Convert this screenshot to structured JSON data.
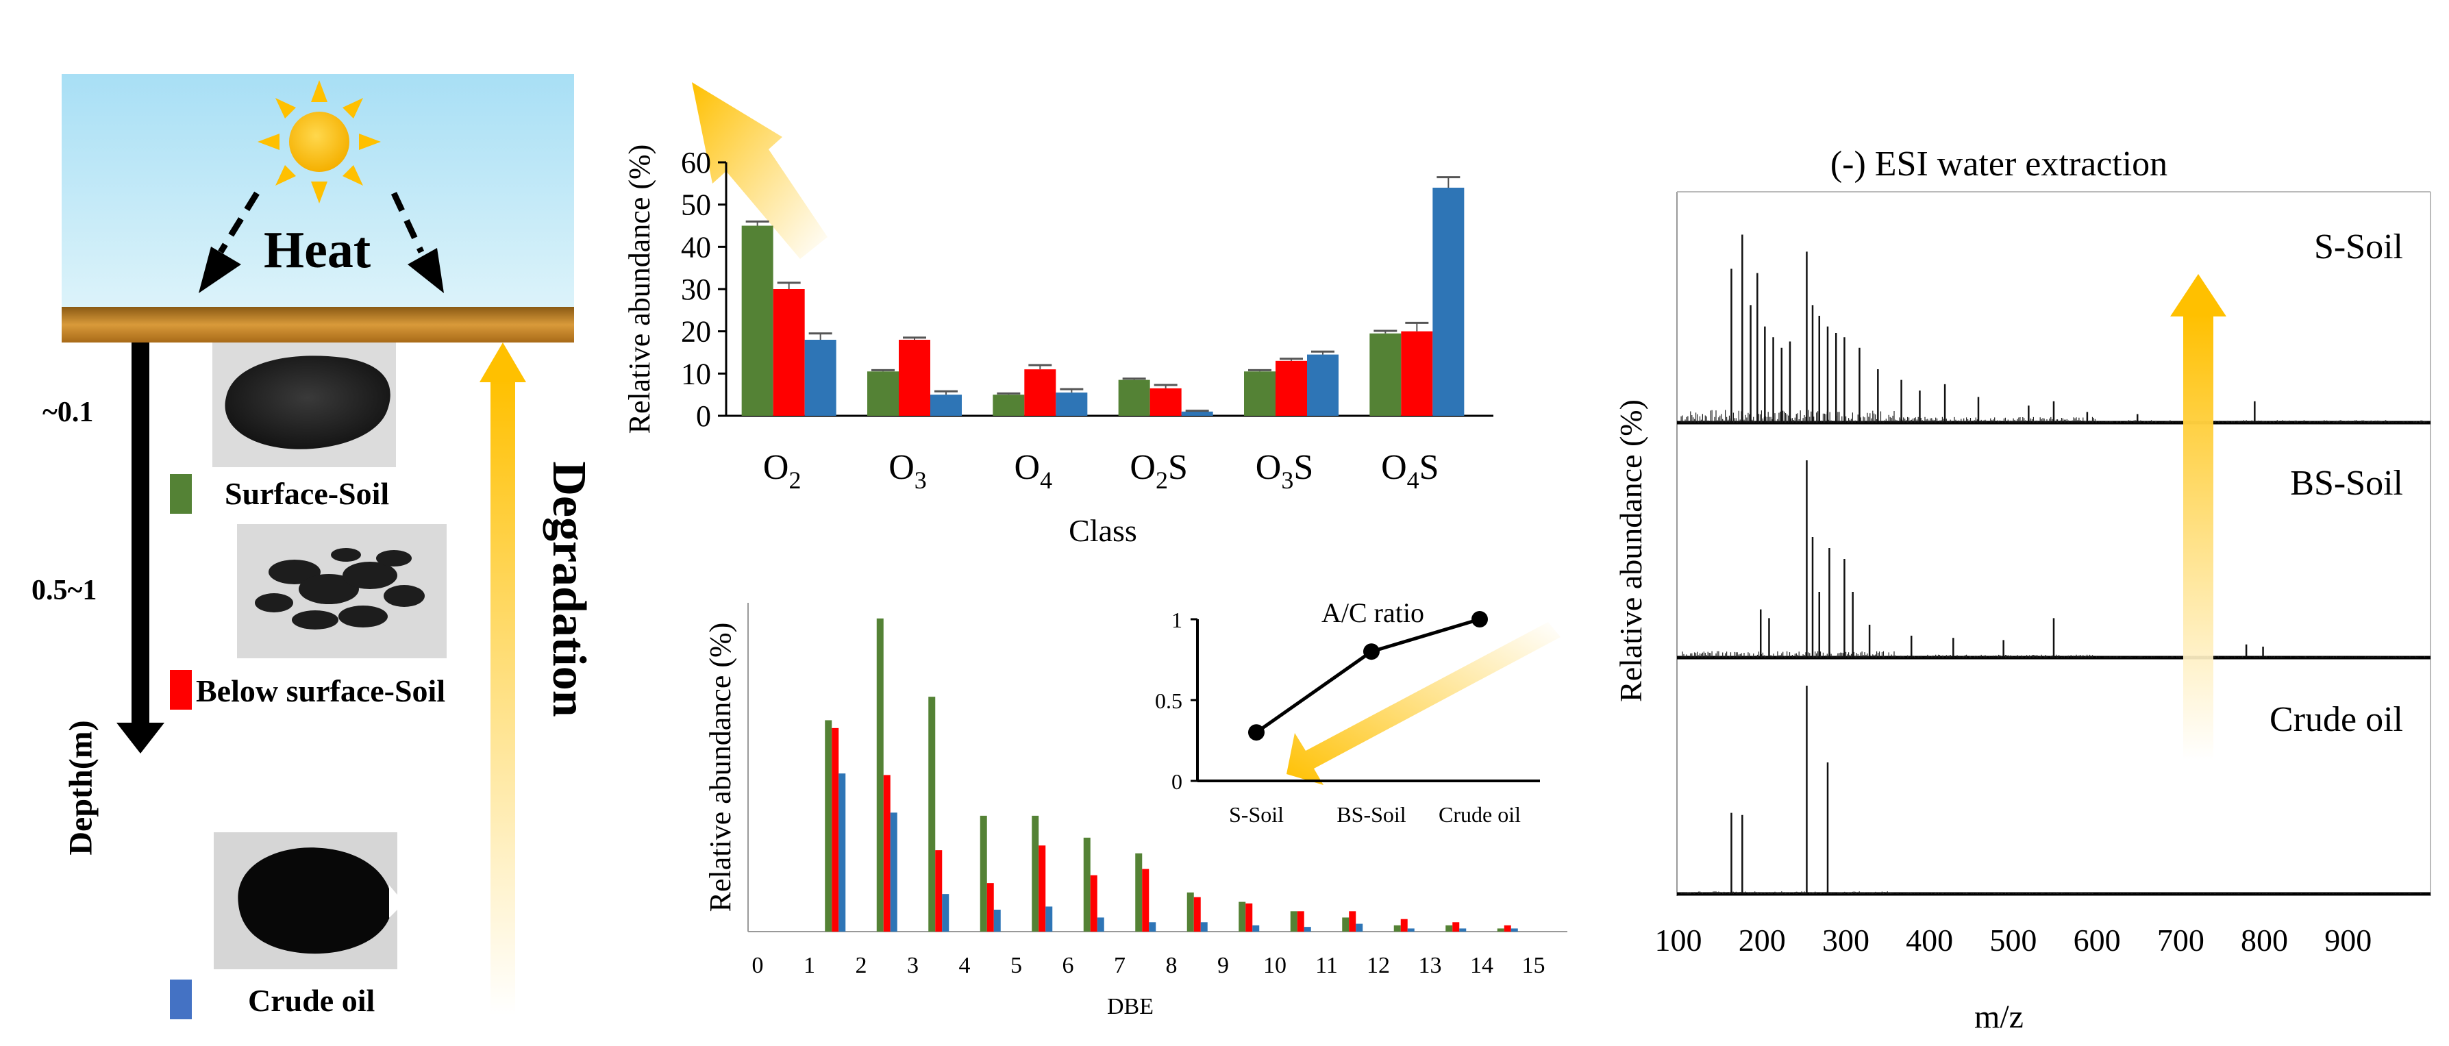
{
  "left_panel": {
    "heat_label": "Heat",
    "depth_ticks": [
      "~0.1",
      "0.5~1"
    ],
    "depth_axis_label": "Depth(m)",
    "degradation_label": "Degradation",
    "legend": [
      {
        "label": "Surface-Soil",
        "color": "#548235"
      },
      {
        "label": "Below surface-Soil",
        "color": "#ff0000"
      },
      {
        "label": "Crude oil",
        "color": "#4472c4"
      }
    ],
    "sample_images": [
      "surface-soil-sample",
      "below-surface-soil-sample",
      "crude-oil-sample"
    ]
  },
  "colors": {
    "green": "#548235",
    "red": "#ff0000",
    "blue": "#2e75b6",
    "sky_top": "#a8dff5",
    "sky_bottom": "#d8f1f8",
    "ground": "#c9851f",
    "sun": "#ffc000",
    "arrow_gold": "#ffc000"
  },
  "chart_data": [
    {
      "type": "bar",
      "xlabel": "Class",
      "ylabel": "Relative abundance (%)",
      "categories": [
        "O2",
        "O3",
        "O4",
        "O2S",
        "O3S",
        "O4S"
      ],
      "category_labels": [
        {
          "base": "O",
          "sub": "2",
          "suffix": ""
        },
        {
          "base": "O",
          "sub": "3",
          "suffix": ""
        },
        {
          "base": "O",
          "sub": "4",
          "suffix": ""
        },
        {
          "base": "O",
          "sub": "2",
          "suffix": "S"
        },
        {
          "base": "O",
          "sub": "3",
          "suffix": "S"
        },
        {
          "base": "O",
          "sub": "4",
          "suffix": "S"
        }
      ],
      "ylim": [
        0,
        60
      ],
      "yticks": [
        0,
        10,
        20,
        30,
        40,
        50,
        60
      ],
      "series": [
        {
          "name": "Surface-Soil",
          "values": [
            45,
            10.5,
            5,
            8.5,
            10.5,
            19.5
          ],
          "errors": [
            1,
            0.3,
            0.3,
            0.3,
            0.3,
            0.6
          ]
        },
        {
          "name": "Below surface-Soil",
          "values": [
            30,
            18,
            11,
            6.5,
            13,
            20
          ],
          "errors": [
            1.5,
            0.5,
            1,
            0.8,
            0.5,
            2
          ]
        },
        {
          "name": "Crude oil",
          "values": [
            18,
            5,
            5.5,
            1,
            14.5,
            54
          ],
          "errors": [
            1.5,
            0.8,
            0.8,
            0.2,
            0.7,
            2.5
          ]
        }
      ]
    },
    {
      "type": "bar",
      "xlabel": "DBE",
      "ylabel": "Relative abundance (%)",
      "x": [
        0,
        1,
        2,
        3,
        4,
        5,
        6,
        7,
        8,
        9,
        10,
        11,
        12,
        13,
        14,
        15
      ],
      "ylim": [
        0,
        21
      ],
      "series": [
        {
          "name": "Surface-Soil",
          "values": [
            0,
            0,
            13.5,
            20,
            15,
            7.4,
            7.4,
            6,
            5,
            2.5,
            1.9,
            1.3,
            0.9,
            0.4,
            0.4,
            0.2
          ]
        },
        {
          "name": "Below surface-Soil",
          "values": [
            0,
            0,
            13,
            10,
            5.2,
            3.1,
            5.5,
            3.6,
            4,
            2.2,
            1.8,
            1.3,
            1.3,
            0.8,
            0.6,
            0.4
          ]
        },
        {
          "name": "Crude oil",
          "values": [
            0,
            0,
            10.1,
            7.6,
            2.4,
            1.4,
            1.6,
            0.9,
            0.6,
            0.6,
            0.4,
            0.3,
            0.5,
            0.2,
            0.2,
            0.2
          ]
        }
      ]
    },
    {
      "type": "line",
      "title": "A/C ratio",
      "categories": [
        "S-Soil",
        "BS-Soil",
        "Crude oil"
      ],
      "values": [
        0.3,
        0.8,
        1.0
      ],
      "ylim": [
        0,
        1
      ],
      "yticks": [
        0,
        0.5,
        1
      ]
    },
    {
      "type": "line",
      "title": "(-) ESI water extraction",
      "xlabel": "m/z",
      "ylabel": "Relative abundance (%)",
      "xlim": [
        100,
        1000
      ],
      "xticks": [
        100,
        200,
        300,
        400,
        500,
        600,
        700,
        800,
        900
      ],
      "spectra": [
        {
          "name": "S-Soil",
          "peaks": [
            [
              165,
              0.72
            ],
            [
              178,
              0.88
            ],
            [
              188,
              0.55
            ],
            [
              196,
              0.7
            ],
            [
              205,
              0.45
            ],
            [
              215,
              0.4
            ],
            [
              225,
              0.35
            ],
            [
              235,
              0.38
            ],
            [
              255,
              0.8
            ],
            [
              262,
              0.55
            ],
            [
              270,
              0.5
            ],
            [
              280,
              0.45
            ],
            [
              290,
              0.42
            ],
            [
              300,
              0.4
            ],
            [
              318,
              0.35
            ],
            [
              340,
              0.25
            ],
            [
              368,
              0.2
            ],
            [
              390,
              0.15
            ],
            [
              420,
              0.18
            ],
            [
              460,
              0.12
            ],
            [
              520,
              0.08
            ],
            [
              550,
              0.1
            ],
            [
              590,
              0.05
            ],
            [
              650,
              0.04
            ],
            [
              790,
              0.1
            ]
          ]
        },
        {
          "name": "BS-Soil",
          "peaks": [
            [
              200,
              0.22
            ],
            [
              210,
              0.18
            ],
            [
              255,
              0.9
            ],
            [
              262,
              0.55
            ],
            [
              270,
              0.3
            ],
            [
              282,
              0.5
            ],
            [
              300,
              0.45
            ],
            [
              310,
              0.3
            ],
            [
              330,
              0.15
            ],
            [
              380,
              0.1
            ],
            [
              430,
              0.09
            ],
            [
              490,
              0.08
            ],
            [
              550,
              0.18
            ],
            [
              780,
              0.06
            ],
            [
              800,
              0.05
            ]
          ]
        },
        {
          "name": "Crude oil",
          "peaks": [
            [
              165,
              0.37
            ],
            [
              178,
              0.36
            ],
            [
              255,
              0.95
            ],
            [
              280,
              0.6
            ]
          ]
        }
      ]
    }
  ]
}
